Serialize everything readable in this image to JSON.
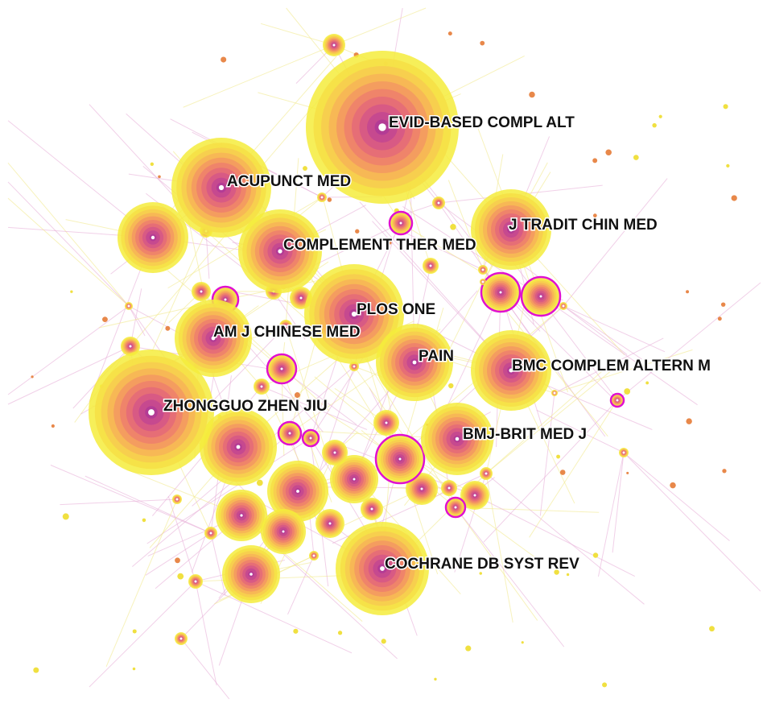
{
  "nodes": [
    {
      "label": "EVID-BASED COMPL ALT"
    },
    {
      "label": "ACUPUNCT MED"
    },
    {
      "label": "J TRADIT CHIN MED"
    },
    {
      "label": "COMPLEMENT THER MED"
    },
    {
      "label": "PLOS ONE"
    },
    {
      "label": "AM J CHINESE MED"
    },
    {
      "label": "PAIN"
    },
    {
      "label": "BMC COMPLEM ALTERN M"
    },
    {
      "label": "ZHONGGUO ZHEN JIU"
    },
    {
      "label": "BMJ-BRIT MED J"
    },
    {
      "label": "COCHRANE DB SYST REV"
    }
  ]
}
